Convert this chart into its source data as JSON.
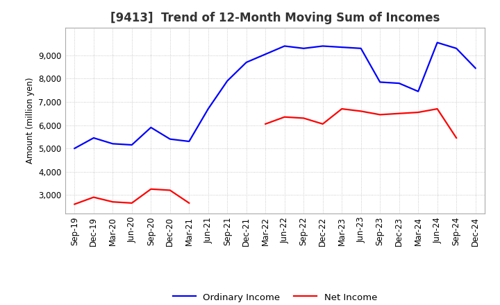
{
  "title": "[9413]  Trend of 12-Month Moving Sum of Incomes",
  "ylabel": "Amount (million yen)",
  "x_labels": [
    "Sep-19",
    "Dec-19",
    "Mar-20",
    "Jun-20",
    "Sep-20",
    "Dec-20",
    "Mar-21",
    "Jun-21",
    "Sep-21",
    "Dec-21",
    "Mar-22",
    "Jun-22",
    "Sep-22",
    "Dec-22",
    "Mar-23",
    "Jun-23",
    "Sep-23",
    "Dec-23",
    "Mar-24",
    "Jun-24",
    "Sep-24",
    "Dec-24"
  ],
  "ordinary_income": [
    5000,
    5450,
    5200,
    5150,
    5900,
    5400,
    5300,
    6700,
    7900,
    8700,
    9050,
    9400,
    9300,
    9400,
    9350,
    9300,
    7850,
    7800,
    7450,
    9550,
    9300,
    8450
  ],
  "net_income": [
    2600,
    2900,
    2700,
    2650,
    3250,
    3200,
    2650,
    null,
    null,
    null,
    6050,
    6350,
    6300,
    6050,
    6700,
    6600,
    6450,
    6500,
    6550,
    6700,
    5450,
    null
  ],
  "ordinary_color": "#0000ff",
  "net_color": "#ff0000",
  "ylim_min": 2200,
  "ylim_max": 10200,
  "yticks": [
    3000,
    4000,
    5000,
    6000,
    7000,
    8000,
    9000
  ],
  "background_color": "#ffffff",
  "grid_color": "#aaaaaa",
  "title_fontsize": 12,
  "axis_fontsize": 8.5,
  "legend_labels": [
    "Ordinary Income",
    "Net Income"
  ]
}
